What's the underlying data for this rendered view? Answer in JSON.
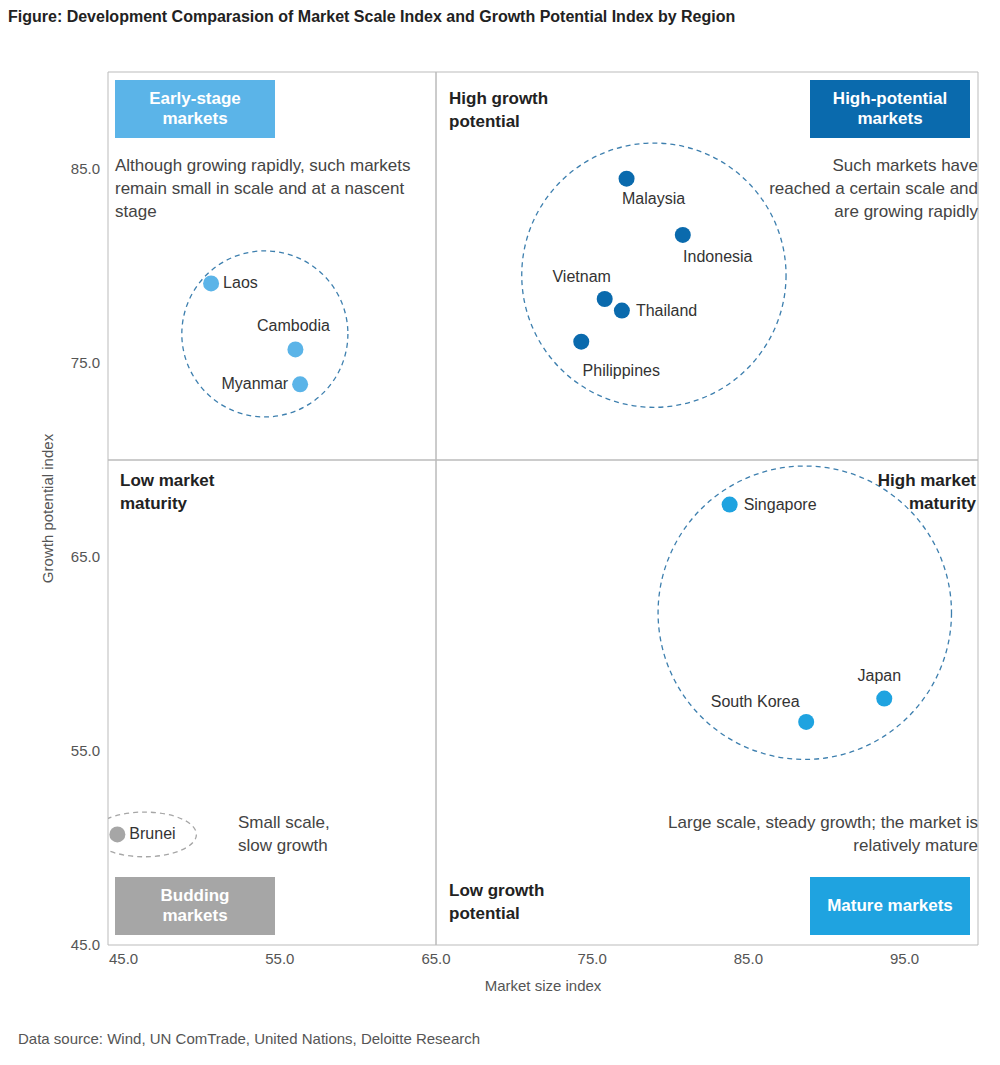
{
  "chart_data": {
    "type": "scatter",
    "title": "Figure: Development Comparasion of Market Scale Index and Growth Potential Index by Region",
    "x_label": "Market size index",
    "y_label": "Growth potential index",
    "source": "Data source: Wind, UN ComTrade, United Nations, Deloitte Research",
    "xlim": [
      44,
      99.7
    ],
    "ylim": [
      45,
      90
    ],
    "xticks": [
      {
        "value": 45,
        "label": "45.0"
      },
      {
        "value": 55,
        "label": "55.0"
      },
      {
        "value": 65,
        "label": "65.0"
      },
      {
        "value": 75,
        "label": "75.0"
      },
      {
        "value": 85,
        "label": "85.0"
      },
      {
        "value": 95,
        "label": "95.0"
      }
    ],
    "yticks": [
      {
        "value": 45,
        "label": "45.0"
      },
      {
        "value": 55,
        "label": "55.0"
      },
      {
        "value": 65,
        "label": "65.0"
      },
      {
        "value": 75,
        "label": "75.0"
      },
      {
        "value": 85,
        "label": "85.0"
      }
    ],
    "dividers": {
      "x": 65,
      "y": 70
    },
    "quadrant_labels": {
      "top": "High growth potential",
      "left": "Low market maturity",
      "right": "High market maturity",
      "bottom": "Low growth potential"
    },
    "series": [
      {
        "name": "Early-stage markets",
        "description": "Although growing rapidly, such markets remain small in scale and at a nascent stage",
        "color": "#5bb4e8",
        "points": [
          {
            "label": "Laos",
            "x": 50.6,
            "y": 79.1
          },
          {
            "label": "Cambodia",
            "x": 56.0,
            "y": 75.7
          },
          {
            "label": "Myanmar",
            "x": 56.3,
            "y": 73.9
          }
        ]
      },
      {
        "name": "High-potential markets",
        "description": "Such markets have reached a certain scale and are growing rapidly",
        "color": "#0a6aad",
        "points": [
          {
            "label": "Malaysia",
            "x": 77.2,
            "y": 84.5
          },
          {
            "label": "Indonesia",
            "x": 80.8,
            "y": 81.6
          },
          {
            "label": "Vietnam",
            "x": 75.8,
            "y": 78.3
          },
          {
            "label": "Thailand",
            "x": 76.9,
            "y": 77.7
          },
          {
            "label": "Philippines",
            "x": 74.3,
            "y": 76.1
          }
        ]
      },
      {
        "name": "Mature markets",
        "description": "Large scale, steady growth; the market is relatively mature",
        "color": "#1fa3e0",
        "points": [
          {
            "label": "Singapore",
            "x": 83.8,
            "y": 67.7
          },
          {
            "label": "Japan",
            "x": 93.7,
            "y": 57.7
          },
          {
            "label": "South Korea",
            "x": 88.7,
            "y": 56.5
          }
        ]
      },
      {
        "name": "Budding markets",
        "description": "Small scale, slow growth",
        "color": "#a6a6a6",
        "points": [
          {
            "label": "Brunei",
            "x": 44.6,
            "y": 50.7
          }
        ]
      }
    ]
  }
}
